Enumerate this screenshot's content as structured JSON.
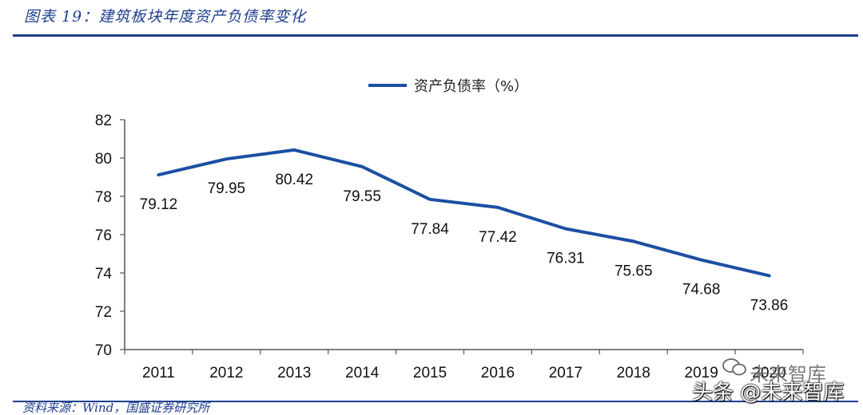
{
  "figure_title": "图表 19：建筑板块年度资产负债率变化",
  "source_note": "资料来源：Wind，国盛证券研究所",
  "watermarks": [
    "未来智库",
    "头条 @未来智库"
  ],
  "colors": {
    "accent": "#1f3f8f",
    "line": "#1c4fa3",
    "axis": "#555555"
  },
  "chart_data": {
    "type": "line",
    "title": "",
    "xlabel": "",
    "ylabel": "",
    "categories": [
      "2011",
      "2012",
      "2013",
      "2014",
      "2015",
      "2016",
      "2017",
      "2018",
      "2019",
      "2020"
    ],
    "series": [
      {
        "name": "资产负债率（%）",
        "values": [
          79.12,
          79.95,
          80.42,
          79.55,
          77.84,
          77.42,
          76.31,
          75.65,
          74.68,
          73.86
        ]
      }
    ],
    "ylim": [
      70,
      82
    ],
    "yticks": [
      70,
      72,
      74,
      76,
      78,
      80,
      82
    ],
    "legend_position": "top-center",
    "grid": false,
    "data_labels": true
  }
}
